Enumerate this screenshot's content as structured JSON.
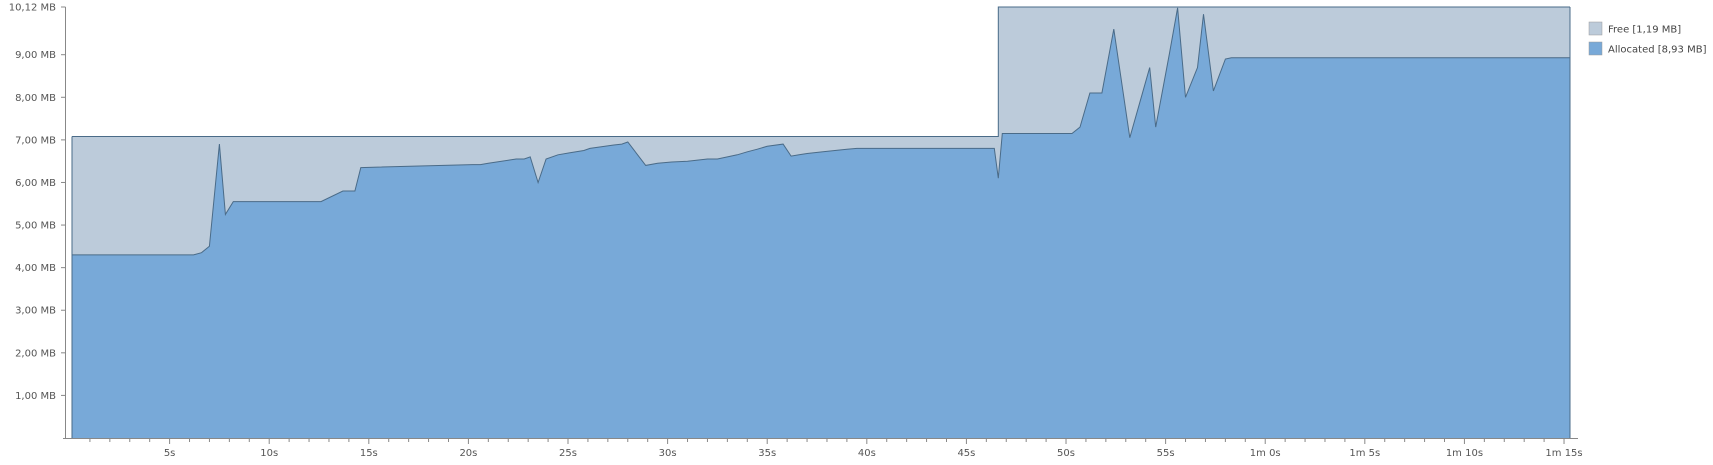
{
  "chart_data": {
    "type": "area",
    "title": "",
    "xlabel": "",
    "ylabel": "",
    "xlim": [
      0,
      75.3
    ],
    "ylim": [
      0,
      10.12
    ],
    "y_ticks": [
      {
        "value": 1,
        "label": "1,00 MB"
      },
      {
        "value": 2,
        "label": "2,00 MB"
      },
      {
        "value": 3,
        "label": "3,00 MB"
      },
      {
        "value": 4,
        "label": "4,00 MB"
      },
      {
        "value": 5,
        "label": "5,00 MB"
      },
      {
        "value": 6,
        "label": "6,00 MB"
      },
      {
        "value": 7,
        "label": "7,00 MB"
      },
      {
        "value": 8,
        "label": "8,00 MB"
      },
      {
        "value": 9,
        "label": "9,00 MB"
      },
      {
        "value": 10.12,
        "label": "10,12 MB"
      }
    ],
    "x_ticks": [
      {
        "value": 5,
        "label": "5s"
      },
      {
        "value": 10,
        "label": "10s"
      },
      {
        "value": 15,
        "label": "15s"
      },
      {
        "value": 20,
        "label": "20s"
      },
      {
        "value": 25,
        "label": "25s"
      },
      {
        "value": 30,
        "label": "30s"
      },
      {
        "value": 35,
        "label": "35s"
      },
      {
        "value": 40,
        "label": "40s"
      },
      {
        "value": 45,
        "label": "45s"
      },
      {
        "value": 50,
        "label": "50s"
      },
      {
        "value": 55,
        "label": "55s"
      },
      {
        "value": 60,
        "label": "1m 0s"
      },
      {
        "value": 65,
        "label": "1m 5s"
      },
      {
        "value": 70,
        "label": "1m 10s"
      },
      {
        "value": 75,
        "label": "1m 15s"
      }
    ],
    "legend_position": "top-right",
    "series": [
      {
        "name": "Free [1,19 MB]",
        "color": "#bccbda",
        "x": [
          0.1,
          46.6,
          46.6,
          75.3
        ],
        "values": [
          7.08,
          7.08,
          10.12,
          10.12
        ]
      },
      {
        "name": "Allocated [8,93 MB]",
        "color": "#78a9d8",
        "x": [
          0.1,
          6.2,
          6.6,
          7.0,
          7.5,
          7.8,
          8.2,
          12.2,
          12.6,
          13.7,
          14.3,
          14.6,
          20.2,
          20.6,
          21.0,
          22.4,
          22.8,
          23.1,
          23.5,
          23.9,
          24.5,
          25.1,
          25.8,
          26.1,
          27.3,
          27.7,
          28.0,
          28.9,
          29.5,
          30.2,
          31.0,
          32.0,
          32.5,
          33.0,
          33.5,
          34.0,
          34.5,
          35.0,
          35.8,
          36.2,
          36.6,
          37.0,
          37.8,
          38.4,
          39.0,
          39.5,
          46.4,
          46.6,
          46.8,
          47.0,
          50.3,
          50.7,
          51.2,
          51.8,
          52.4,
          53.2,
          54.2,
          54.5,
          55.2,
          55.6,
          56.0,
          56.6,
          56.9,
          57.4,
          58.0,
          58.3,
          58.7,
          75.3
        ],
        "values": [
          4.3,
          4.3,
          4.35,
          4.5,
          6.9,
          5.25,
          5.55,
          5.55,
          5.55,
          5.8,
          5.8,
          6.35,
          6.42,
          6.42,
          6.45,
          6.55,
          6.55,
          6.6,
          6.0,
          6.55,
          6.65,
          6.7,
          6.75,
          6.8,
          6.88,
          6.9,
          6.95,
          6.4,
          6.45,
          6.48,
          6.5,
          6.55,
          6.55,
          6.6,
          6.65,
          6.72,
          6.78,
          6.85,
          6.9,
          6.62,
          6.65,
          6.68,
          6.72,
          6.75,
          6.78,
          6.8,
          6.8,
          6.1,
          7.15,
          7.15,
          7.15,
          7.3,
          8.1,
          8.1,
          9.6,
          7.05,
          8.7,
          7.3,
          9.05,
          10.1,
          8.0,
          8.7,
          9.95,
          8.15,
          8.9,
          8.93,
          8.93,
          8.93
        ]
      }
    ]
  }
}
